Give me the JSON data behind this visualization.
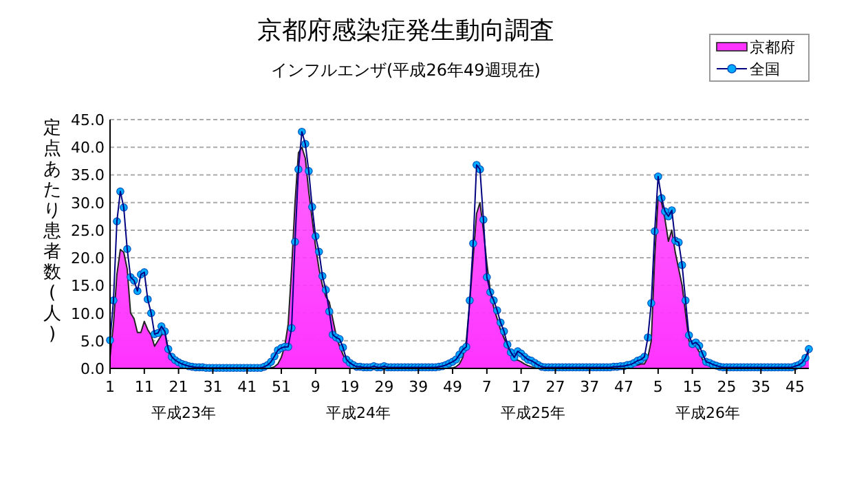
{
  "chart_data": {
    "type": "area",
    "title": "京都府感染症発生動向調査",
    "subtitle": "インフルエンザ(平成26年49週現在)",
    "ylabel": "定点あたり患者数(人)",
    "annotations": [
      "平成23年",
      "平成24年",
      "平成25年",
      "平成26年"
    ],
    "categories": [
      "1",
      null,
      null,
      null,
      null,
      null,
      null,
      null,
      null,
      null,
      "11",
      null,
      null,
      null,
      null,
      null,
      null,
      null,
      null,
      null,
      "21",
      null,
      null,
      null,
      null,
      null,
      null,
      null,
      null,
      null,
      "31",
      null,
      null,
      null,
      null,
      null,
      null,
      null,
      null,
      null,
      "41",
      null,
      null,
      null,
      null,
      null,
      null,
      null,
      null,
      null,
      "51",
      null,
      null,
      null,
      null,
      null,
      null,
      null,
      null,
      null,
      "9",
      null,
      null,
      null,
      null,
      null,
      null,
      null,
      null,
      null,
      "19",
      null,
      null,
      null,
      null,
      null,
      null,
      null,
      null,
      null,
      "29",
      null,
      null,
      null,
      null,
      null,
      null,
      null,
      null,
      null,
      "39",
      null,
      null,
      null,
      null,
      null,
      null,
      null,
      null,
      null,
      "49",
      null,
      null,
      null,
      null,
      null,
      null,
      null,
      null,
      null,
      "7",
      null,
      null,
      null,
      null,
      null,
      null,
      null,
      null,
      null,
      "17",
      null,
      null,
      null,
      null,
      null,
      null,
      null,
      null,
      null,
      "27",
      null,
      null,
      null,
      null,
      null,
      null,
      null,
      null,
      null,
      "37",
      null,
      null,
      null,
      null,
      null,
      null,
      null,
      null,
      null,
      "47",
      null,
      null,
      null,
      null,
      null,
      null,
      null,
      null,
      null,
      "5",
      null,
      null,
      null,
      null,
      null,
      null,
      null,
      null,
      null,
      "15",
      null,
      null,
      null,
      null,
      null,
      null,
      null,
      null,
      null,
      "25",
      null,
      null,
      null,
      null,
      null,
      null,
      null,
      null,
      null,
      "35",
      null,
      null,
      null,
      null,
      null,
      null,
      null,
      null,
      null,
      "45",
      null,
      null,
      null,
      null
    ],
    "series": [
      {
        "name": "京都府",
        "color": "#ff33ff",
        "values": [
          2.0,
          8.0,
          17.0,
          21.5,
          21.0,
          18.0,
          10.0,
          9.0,
          6.5,
          6.5,
          8.5,
          7.0,
          6.0,
          4.0,
          5.0,
          6.0,
          6.5,
          3.0,
          1.5,
          1.0,
          0.6,
          0.4,
          0.2,
          0.1,
          0.1,
          0.1,
          0.1,
          0.1,
          0.1,
          0.1,
          0.1,
          0.1,
          0.1,
          0.1,
          0.1,
          0.1,
          0.1,
          0.1,
          0.1,
          0.1,
          0.1,
          0.1,
          0.1,
          0.1,
          0.1,
          0.1,
          0.1,
          0.1,
          0.3,
          0.8,
          2.0,
          4.0,
          8.0,
          18.0,
          30.0,
          39.0,
          40.0,
          38.0,
          32.0,
          27.0,
          22.0,
          18.0,
          15.0,
          13.0,
          12.0,
          9.0,
          6.0,
          4.0,
          2.5,
          1.2,
          0.6,
          0.3,
          0.1,
          0.1,
          0.1,
          0.1,
          0.1,
          0.1,
          0.1,
          0.1,
          0.1,
          0.1,
          0.1,
          0.1,
          0.1,
          0.1,
          0.1,
          0.1,
          0.1,
          0.1,
          0.1,
          0.1,
          0.1,
          0.1,
          0.1,
          0.1,
          0.1,
          0.1,
          0.1,
          0.1,
          0.1,
          0.3,
          0.8,
          2.0,
          5.0,
          12.0,
          20.0,
          28.0,
          30.0,
          25.0,
          19.0,
          14.0,
          11.0,
          9.0,
          7.0,
          5.5,
          4.0,
          2.5,
          1.5,
          1.5,
          1.2,
          0.8,
          0.5,
          0.3,
          0.1,
          0.1,
          0.1,
          0.1,
          0.1,
          0.1,
          0.1,
          0.1,
          0.1,
          0.1,
          0.1,
          0.1,
          0.1,
          0.1,
          0.1,
          0.1,
          0.1,
          0.1,
          0.1,
          0.1,
          0.1,
          0.1,
          0.1,
          0.1,
          0.1,
          0.1,
          0.2,
          0.3,
          0.4,
          0.5,
          0.6,
          0.8,
          0.8,
          2.0,
          5.0,
          20.0,
          31.0,
          30.0,
          27.0,
          23.0,
          25.0,
          21.0,
          18.0,
          15.0,
          10.0,
          5.0,
          4.0,
          4.0,
          3.0,
          1.5,
          0.8,
          0.4,
          0.1,
          0.1,
          0.1,
          0.1,
          0.1,
          0.1,
          0.1,
          0.1,
          0.1,
          0.1,
          0.1,
          0.1,
          0.1,
          0.1,
          0.1,
          0.1,
          0.1,
          0.1,
          0.1,
          0.1,
          0.1,
          0.1,
          0.1,
          0.1,
          0.1,
          0.3,
          0.8,
          1.5,
          3.0
        ]
      },
      {
        "name": "全国",
        "type": "line",
        "marker": "circle",
        "color": "#00aaff",
        "values": [
          5.1,
          12.3,
          26.6,
          32.0,
          29.1,
          21.6,
          16.5,
          15.9,
          14.0,
          17.0,
          17.4,
          12.5,
          10.0,
          6.2,
          6.4,
          7.6,
          6.7,
          3.5,
          2.1,
          1.5,
          1.1,
          0.8,
          0.6,
          0.4,
          0.3,
          0.2,
          0.2,
          0.2,
          0.1,
          0.1,
          0.1,
          0.1,
          0.1,
          0.1,
          0.1,
          0.1,
          0.1,
          0.1,
          0.1,
          0.1,
          0.1,
          0.1,
          0.1,
          0.1,
          0.1,
          0.3,
          0.6,
          1.2,
          2.2,
          3.3,
          3.7,
          3.9,
          3.9,
          7.3,
          22.9,
          36.0,
          42.8,
          40.6,
          35.7,
          29.2,
          23.9,
          21.1,
          16.7,
          14.2,
          10.3,
          6.1,
          5.6,
          5.3,
          3.8,
          1.6,
          1.0,
          0.6,
          0.3,
          0.3,
          0.2,
          0.2,
          0.2,
          0.4,
          0.2,
          0.2,
          0.4,
          0.2,
          0.2,
          0.2,
          0.2,
          0.2,
          0.2,
          0.2,
          0.2,
          0.2,
          0.2,
          0.2,
          0.2,
          0.2,
          0.2,
          0.2,
          0.3,
          0.4,
          0.6,
          0.9,
          1.2,
          1.6,
          2.5,
          3.4,
          3.9,
          12.3,
          22.6,
          36.8,
          36.0,
          26.9,
          16.5,
          13.8,
          12.3,
          10.5,
          8.3,
          6.7,
          4.3,
          2.9,
          2.0,
          3.1,
          2.7,
          2.1,
          1.6,
          1.4,
          1.0,
          0.6,
          0.3,
          0.2,
          0.2,
          0.2,
          0.2,
          0.2,
          0.2,
          0.2,
          0.2,
          0.2,
          0.2,
          0.2,
          0.2,
          0.2,
          0.2,
          0.2,
          0.2,
          0.2,
          0.2,
          0.2,
          0.2,
          0.3,
          0.3,
          0.4,
          0.4,
          0.6,
          0.7,
          1.0,
          1.4,
          1.6,
          2.1,
          5.6,
          11.8,
          24.8,
          34.7,
          30.8,
          28.4,
          27.5,
          28.6,
          23.1,
          22.8,
          18.7,
          12.3,
          6.0,
          4.4,
          4.7,
          4.1,
          2.6,
          1.2,
          1.0,
          0.7,
          0.5,
          0.3,
          0.2,
          0.2,
          0.2,
          0.2,
          0.2,
          0.2,
          0.2,
          0.2,
          0.2,
          0.2,
          0.2,
          0.2,
          0.2,
          0.2,
          0.2,
          0.2,
          0.2,
          0.2,
          0.2,
          0.2,
          0.2,
          0.4,
          0.6,
          1.0,
          1.9,
          3.5
        ]
      }
    ],
    "ylim": [
      0,
      45
    ],
    "yticks": [
      {
        "value": 0,
        "label": "0.0"
      },
      {
        "value": 5,
        "label": "5.0"
      },
      {
        "value": 10,
        "label": "10.0"
      },
      {
        "value": 15,
        "label": "15.0"
      },
      {
        "value": 20,
        "label": "20.0"
      },
      {
        "value": 25,
        "label": "25.0"
      },
      {
        "value": 30,
        "label": "30.0"
      },
      {
        "value": 35,
        "label": "35.0"
      },
      {
        "value": 40,
        "label": "40.0"
      },
      {
        "value": 45,
        "label": "45.0"
      }
    ],
    "grid": "y",
    "legend": "top right"
  }
}
